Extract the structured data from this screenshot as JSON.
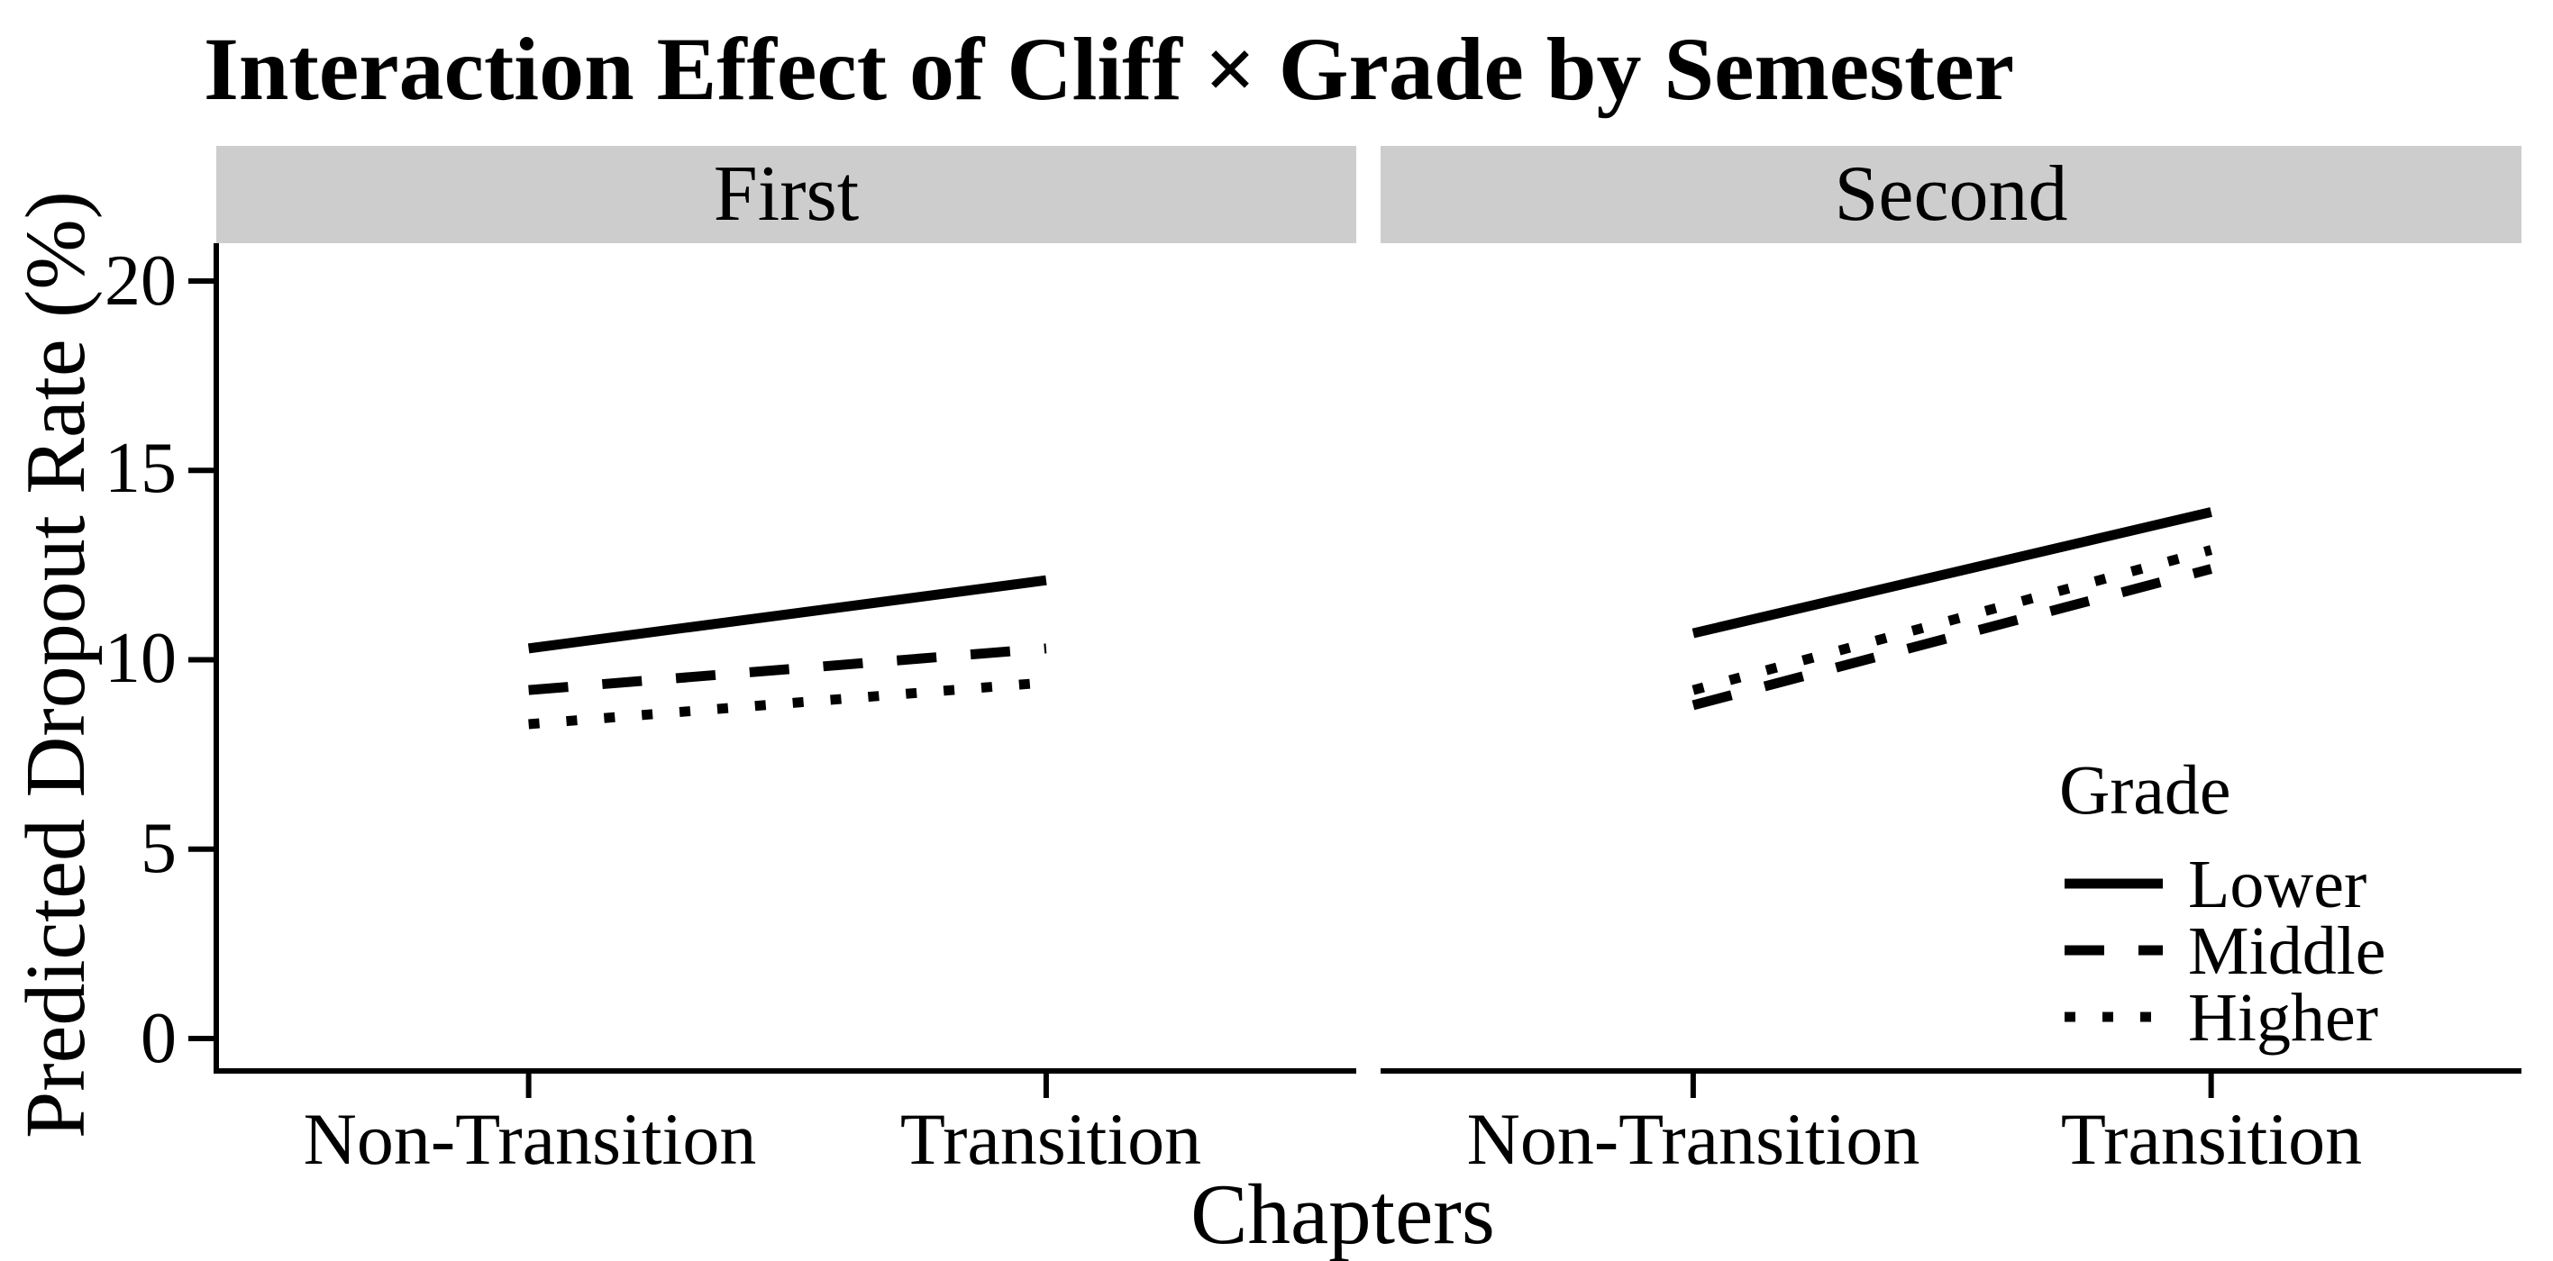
{
  "title": "Interaction Effect of Cliff × Grade by Semester",
  "chart_data": {
    "type": "line",
    "title": "Interaction Effect of Cliff × Grade by Semester",
    "faceting_variable": "Semester",
    "categories": [
      "Non-Transition",
      "Transition"
    ],
    "xlabel": "Chapters",
    "ylabel": "Predicted Dropout Rate (%)",
    "yticks": [
      "0",
      "5",
      "10",
      "15",
      "20"
    ],
    "ylim": [
      0,
      20
    ],
    "grid": false,
    "line_color": "#000000",
    "strip_background": "#cdcdcd",
    "facets": [
      {
        "label": "First",
        "series": [
          {
            "name": "Lower",
            "linetype": "solid",
            "values": [
              10.3,
              12.1
            ]
          },
          {
            "name": "Middle",
            "linetype": "dashed",
            "values": [
              9.2,
              10.3
            ]
          },
          {
            "name": "Higher",
            "linetype": "dotted",
            "values": [
              8.3,
              9.4
            ]
          }
        ]
      },
      {
        "label": "Second",
        "series": [
          {
            "name": "Lower",
            "linetype": "solid",
            "values": [
              10.7,
              13.9
            ]
          },
          {
            "name": "Middle",
            "linetype": "dashed",
            "values": [
              8.8,
              12.4
            ]
          },
          {
            "name": "Higher",
            "linetype": "dotted",
            "values": [
              9.2,
              12.9
            ]
          }
        ]
      }
    ],
    "legend": {
      "title": "Grade",
      "position": "inside bottom-right of second panel",
      "entries": [
        "Lower",
        "Middle",
        "Higher"
      ]
    }
  }
}
